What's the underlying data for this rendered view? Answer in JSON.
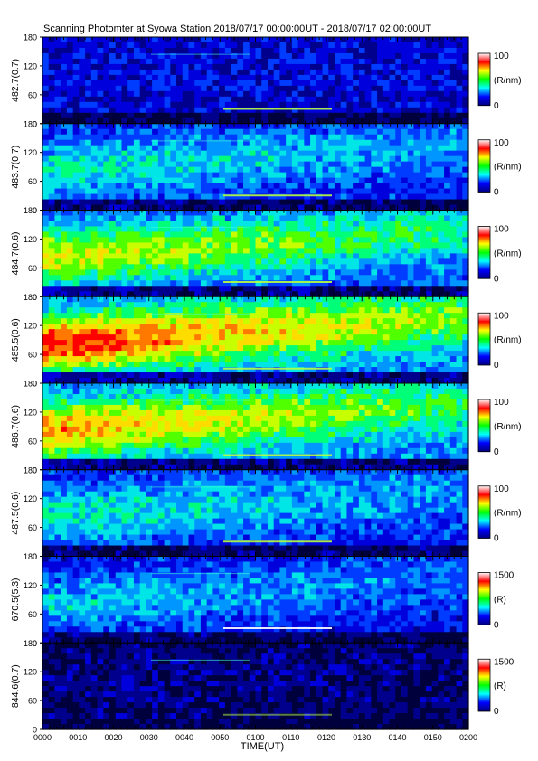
{
  "title": "Scanning Photomter at Syowa Station 2018/07/17 00:00:00UT - 2018/07/17 02:00:00UT",
  "chart_data": {
    "type": "heatmap",
    "x_label": "TIME(UT)",
    "x_ticks": [
      "0000",
      "0010",
      "0020",
      "0030",
      "0040",
      "0050",
      "0100",
      "0110",
      "0120",
      "0130",
      "0140",
      "0150",
      "0200"
    ],
    "y_ticks": [
      "0",
      "60",
      "120",
      "180"
    ],
    "ylim": [
      0,
      180
    ],
    "colormap": [
      "#000080",
      "#0000ff",
      "#00ffff",
      "#00ff00",
      "#ffff00",
      "#ff0000",
      "#ffffff"
    ],
    "panels": [
      {
        "label": "482.7(0.7)",
        "unit": "(R/nm)",
        "cmin": "0",
        "cmax": "100"
      },
      {
        "label": "483.7(0.7)",
        "unit": "(R/nm)",
        "cmin": "0",
        "cmax": "100"
      },
      {
        "label": "484.7(0.6)",
        "unit": "(R/nm)",
        "cmin": "0",
        "cmax": "100"
      },
      {
        "label": "485.5(0.6)",
        "unit": "(R/nm)",
        "cmin": "0",
        "cmax": "100"
      },
      {
        "label": "486.7(0.6)",
        "unit": "(R/nm)",
        "cmin": "0",
        "cmax": "100"
      },
      {
        "label": "487.5(0.6)",
        "unit": "(R/nm)",
        "cmin": "0",
        "cmax": "100"
      },
      {
        "label": "670.5(5.3)",
        "unit": "(R)",
        "cmin": "0",
        "cmax": "1500"
      },
      {
        "label": "844.6(0.7)",
        "unit": "(R)",
        "cmin": "0",
        "cmax": "1500"
      }
    ]
  }
}
